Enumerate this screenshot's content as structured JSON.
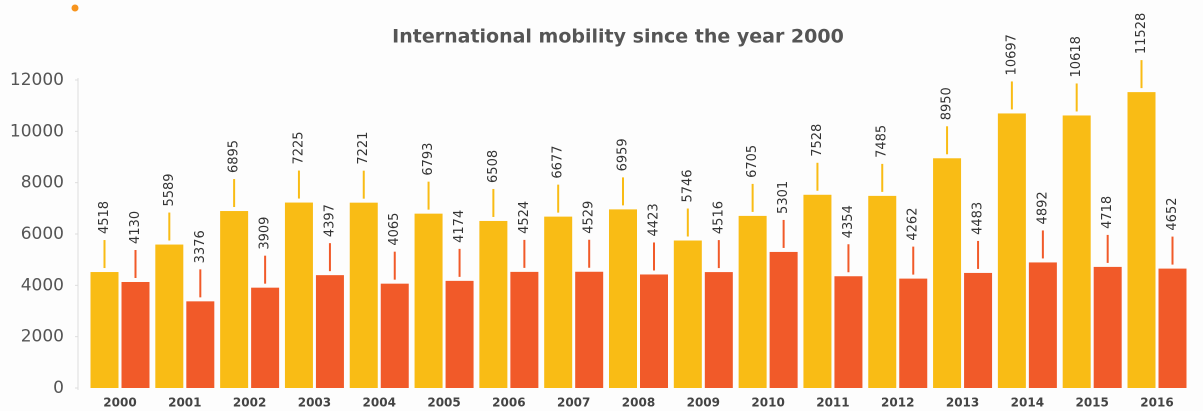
{
  "chart_data": {
    "type": "bar",
    "title": "International mobility since the year 2000",
    "categories": [
      "2000",
      "2001",
      "2002",
      "2003",
      "2004",
      "2005",
      "2006",
      "2007",
      "2008",
      "2009",
      "2010",
      "2011",
      "2012",
      "2013",
      "2014",
      "2015",
      "2016"
    ],
    "series": [
      {
        "color": "#f9bc15",
        "values": [
          4518,
          5589,
          6895,
          7225,
          7221,
          6793,
          6508,
          6677,
          6959,
          5746,
          6705,
          7528,
          7485,
          8950,
          10697,
          10618,
          11528
        ]
      },
      {
        "color": "#f15a29",
        "values": [
          4130,
          3376,
          3909,
          4397,
          4065,
          4174,
          4524,
          4529,
          4423,
          4516,
          5301,
          4354,
          4262,
          4483,
          4892,
          4718,
          4652
        ]
      }
    ],
    "ylim": [
      0,
      12000
    ],
    "yticks": [
      0,
      2000,
      4000,
      6000,
      8000,
      10000,
      12000
    ],
    "grid": false
  }
}
